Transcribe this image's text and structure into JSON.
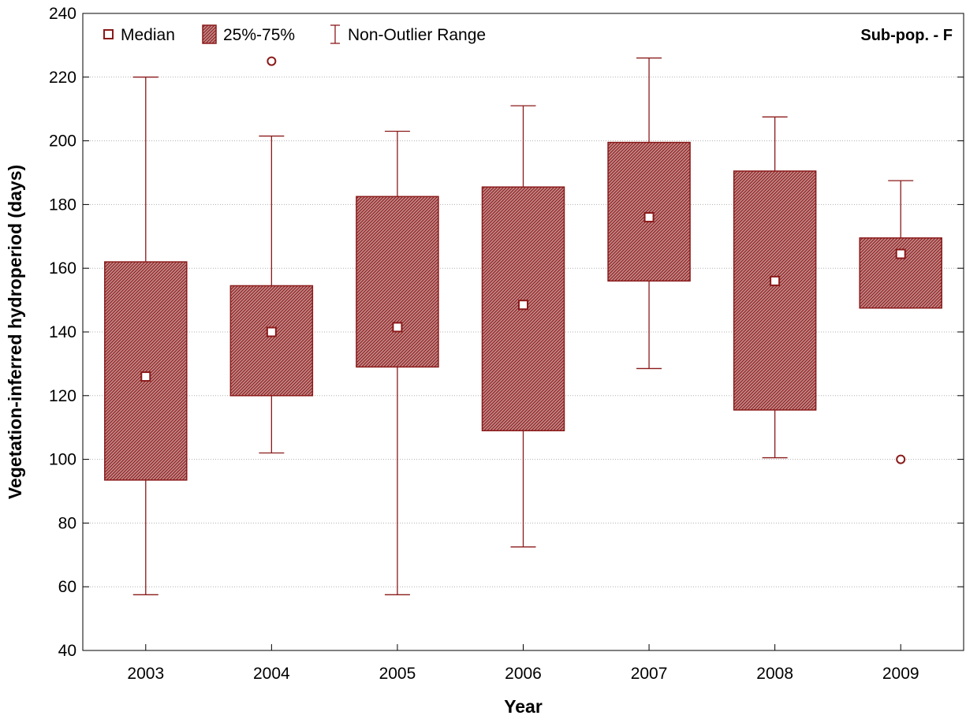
{
  "chart_data": {
    "type": "box",
    "xlabel": "Year",
    "ylabel": "Vegetation-inferred hydroperiod (days)",
    "panel_label": "Sub-pop. - F",
    "ylim": [
      40,
      240
    ],
    "yticks": [
      40,
      60,
      80,
      100,
      120,
      140,
      160,
      180,
      200,
      220,
      240
    ],
    "grid": true,
    "legend": {
      "position": "top-left",
      "items": [
        "Median",
        "25%-75%",
        "Non-Outlier Range"
      ]
    },
    "colors": {
      "box": "#8b1a1a",
      "box_fill": "#b05050",
      "grid": "#b0b0b0"
    },
    "categories": [
      "2003",
      "2004",
      "2005",
      "2006",
      "2007",
      "2008",
      "2009"
    ],
    "boxes": [
      {
        "year": "2003",
        "min": 57.5,
        "q1": 93.5,
        "median": 126,
        "q3": 162,
        "max": 220,
        "outliers": []
      },
      {
        "year": "2004",
        "min": 102,
        "q1": 120,
        "median": 140,
        "q3": 154.5,
        "max": 201.5,
        "outliers": [
          225
        ]
      },
      {
        "year": "2005",
        "min": 57.5,
        "q1": 129,
        "median": 141.5,
        "q3": 182.5,
        "max": 203,
        "outliers": []
      },
      {
        "year": "2006",
        "min": 72.5,
        "q1": 109,
        "median": 148.5,
        "q3": 185.5,
        "max": 211,
        "outliers": []
      },
      {
        "year": "2007",
        "min": 128.5,
        "q1": 156,
        "median": 176,
        "q3": 199.5,
        "max": 226,
        "outliers": []
      },
      {
        "year": "2008",
        "min": 100.5,
        "q1": 115.5,
        "median": 156,
        "q3": 190.5,
        "max": 207.5,
        "outliers": []
      },
      {
        "year": "2009",
        "min": 147.5,
        "q1": 147.5,
        "median": 164.5,
        "q3": 169.5,
        "max": 187.5,
        "outliers": [
          100
        ]
      }
    ]
  }
}
